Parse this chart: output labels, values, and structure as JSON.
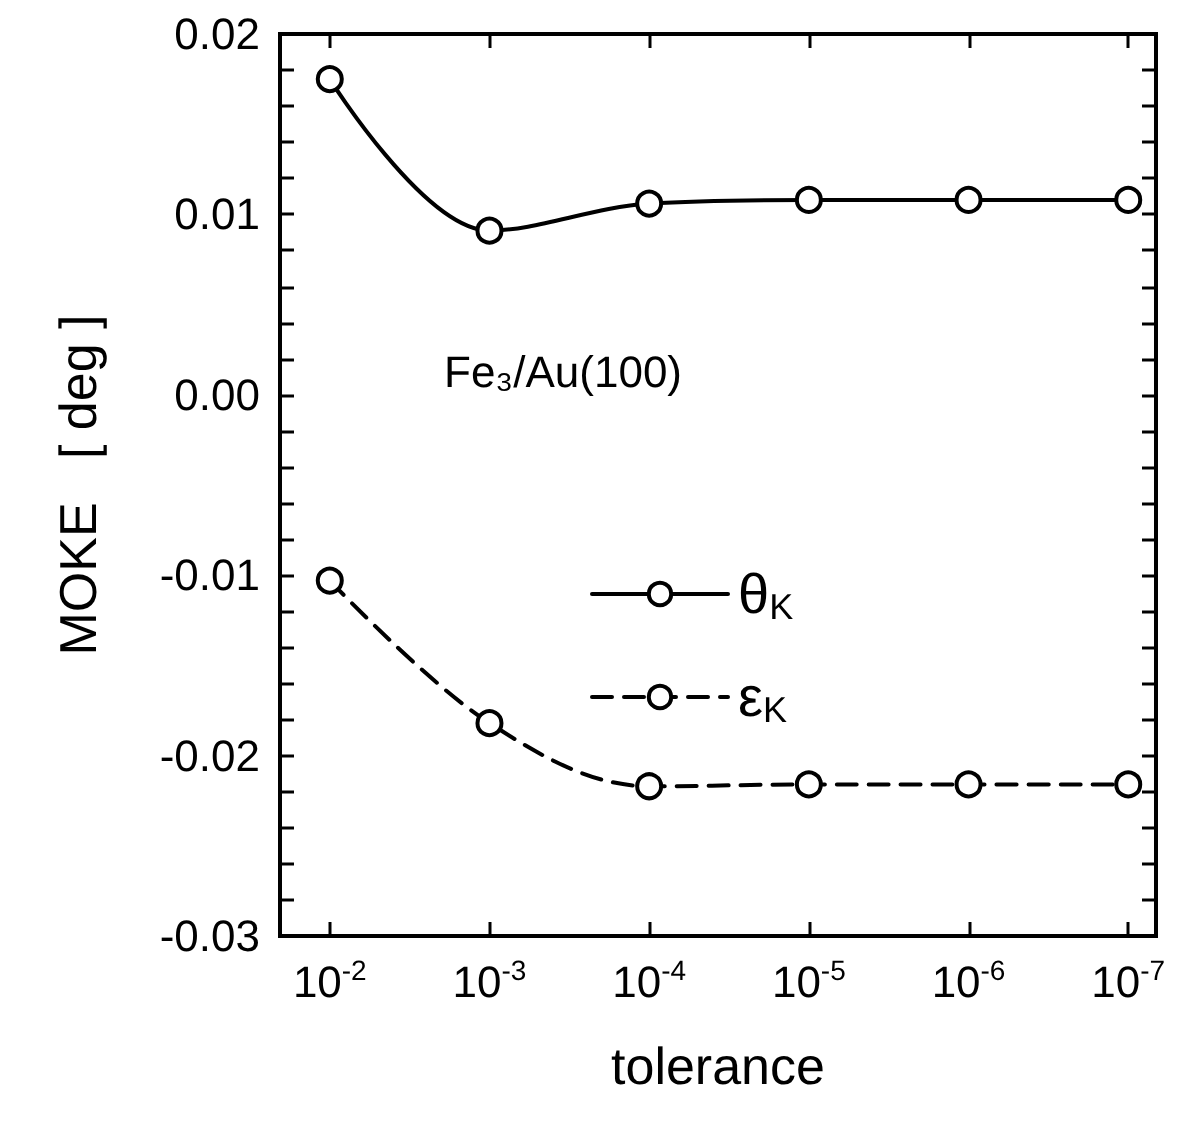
{
  "chart_data": {
    "type": "line",
    "xlabel": "tolerance",
    "ylabel": "MOKE   [ deg ]",
    "annotations": [
      "Fe₃/Au(100)"
    ],
    "x": [
      0.01,
      0.001,
      0.0001,
      1e-05,
      1e-06,
      1e-07
    ],
    "log": "x",
    "xlim": [
      0.0205,
      6.7e-08
    ],
    "xticks": [
      {
        "value": 0.01,
        "label": "10$^{-2}$"
      },
      {
        "value": 0.001,
        "label": "10$^{-3}$"
      },
      {
        "value": 0.0001,
        "label": "10$^{-4}$"
      },
      {
        "value": 1e-05,
        "label": "10$^{-5}$"
      },
      {
        "value": 1e-06,
        "label": "10$^{-6}$"
      },
      {
        "value": 1e-07,
        "label": "10$^{-7}$"
      }
    ],
    "ylim": [
      -0.03,
      0.02
    ],
    "yticks": [
      -0.03,
      {
        "value": -0.028,
        "label": null
      },
      {
        "value": -0.026,
        "label": null
      },
      {
        "value": -0.024,
        "label": null
      },
      {
        "value": -0.022,
        "label": null
      },
      -0.02,
      {
        "value": -0.018,
        "label": null
      },
      {
        "value": -0.016,
        "label": null
      },
      {
        "value": -0.014,
        "label": null
      },
      {
        "value": -0.012,
        "label": null
      },
      -0.01,
      {
        "value": -0.008,
        "label": null
      },
      {
        "value": -0.006,
        "label": null
      },
      {
        "value": -0.004,
        "label": null
      },
      {
        "value": -0.002,
        "label": null
      },
      {
        "value": 0,
        "label": "0.00"
      },
      {
        "value": 0.002,
        "label": null
      },
      {
        "value": 0.004,
        "label": null
      },
      {
        "value": 0.006,
        "label": null
      },
      {
        "value": 0.008,
        "label": null
      },
      0.01,
      {
        "value": 0.012,
        "label": null
      },
      {
        "value": 0.014,
        "label": null
      },
      {
        "value": 0.016,
        "label": null
      },
      {
        "value": 0.018,
        "label": null
      },
      0.02
    ],
    "grid": false,
    "legend": "center",
    "marker": "circle",
    "series": [
      {
        "name": "θ$_{K}$",
        "color": "#000000",
        "line_style": "solid",
        "values": [
          0.0175,
          0.0091,
          0.0106,
          0.0108,
          0.0108,
          0.0108
        ]
      },
      {
        "name": "ε$_{K}$",
        "color": "#000000",
        "line_style": "dashed",
        "values": [
          -0.0103,
          -0.0182,
          -0.0217,
          -0.0216,
          -0.0216,
          -0.0216
        ]
      }
    ]
  }
}
